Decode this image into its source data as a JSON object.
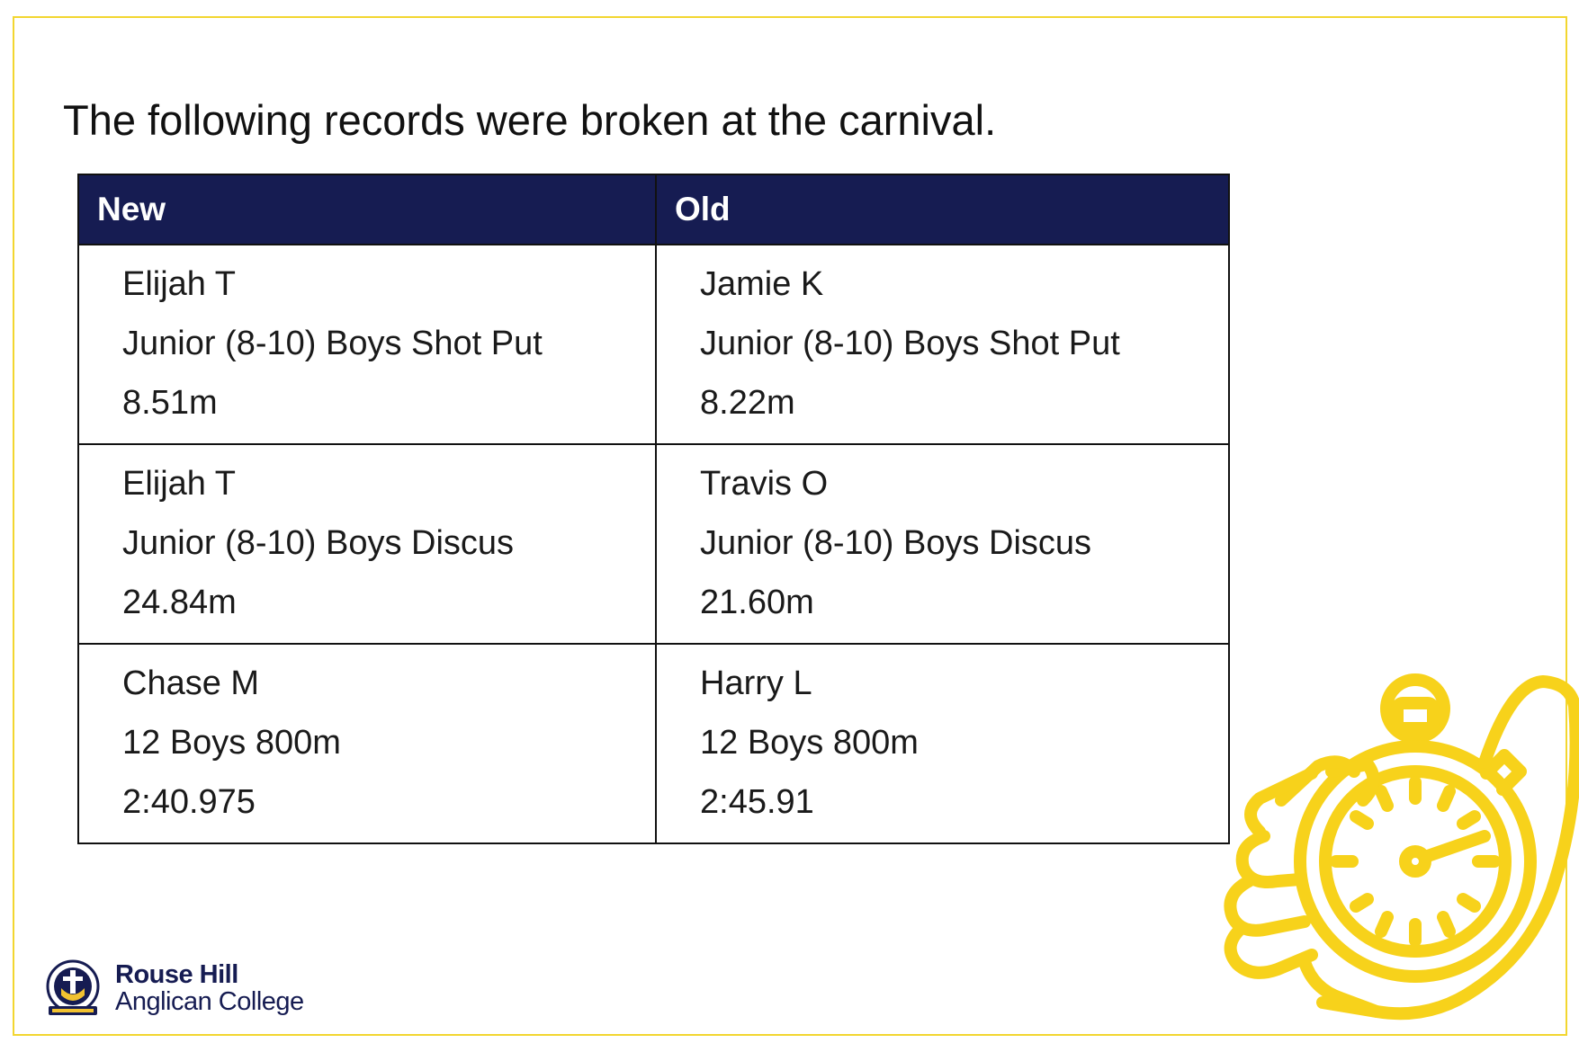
{
  "heading": "The following records were broken at the carnival.",
  "table": {
    "columns": [
      "New",
      "Old"
    ],
    "rows": [
      {
        "new": [
          "Elijah T",
          "Junior (8-10) Boys Shot Put",
          "8.51m"
        ],
        "old": [
          "Jamie K",
          "Junior (8-10) Boys Shot Put",
          "8.22m"
        ]
      },
      {
        "new": [
          "Elijah T",
          "Junior (8-10) Boys Discus",
          "24.84m"
        ],
        "old": [
          "Travis O",
          "Junior (8-10) Boys Discus",
          "21.60m"
        ]
      },
      {
        "new": [
          "Chase M",
          "12 Boys 800m",
          "2:40.975"
        ],
        "old": [
          "Harry L",
          "12 Boys 800m",
          "2:45.91"
        ]
      }
    ]
  },
  "logo": {
    "line1": "Rouse Hill",
    "line2": "Anglican College",
    "crest_ring_text": "ROUSE HILL ANGLICAN COLLEGE",
    "crest_motto": "UNDERSTANDING THROUGH CHRIST"
  },
  "icons": {
    "stopwatch": "stopwatch-in-hand-icon",
    "crest": "school-crest-icon"
  },
  "colors": {
    "frame_border": "#f2d630",
    "header_bg": "#161c52",
    "header_text": "#ffffff",
    "icon_yellow": "#f7d21b",
    "brand_navy": "#161c52"
  }
}
